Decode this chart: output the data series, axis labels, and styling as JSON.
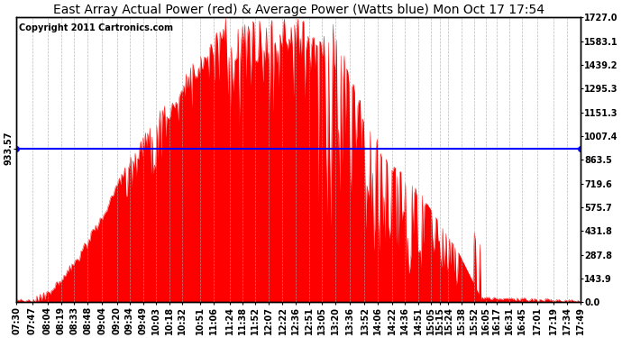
{
  "title": "East Array Actual Power (red) & Average Power (Watts blue) Mon Oct 17 17:54",
  "copyright": "Copyright 2011 Cartronics.com",
  "avg_power": 933.57,
  "y_max": 1727.0,
  "y_min": 0.0,
  "right_ytick_labels": [
    "0.0",
    "143.9",
    "287.8",
    "431.8",
    "575.7",
    "719.6",
    "863.5",
    "1007.4",
    "1151.3",
    "1295.3",
    "1439.2",
    "1583.1",
    "1727.0"
  ],
  "right_ytick_values": [
    0.0,
    143.9,
    287.8,
    431.8,
    575.7,
    719.6,
    863.5,
    1007.4,
    1151.3,
    1295.3,
    1439.2,
    1583.1,
    1727.0
  ],
  "left_ytick_labels": [
    "933.57"
  ],
  "left_ytick_values": [
    933.57
  ],
  "background_color": "#ffffff",
  "fill_color": "#ff0000",
  "line_color": "#ff0000",
  "avg_line_color": "#0000ff",
  "title_fontsize": 10,
  "copyright_fontsize": 7,
  "tick_fontsize": 7,
  "x_tick_labels": [
    "07:30",
    "07:47",
    "08:04",
    "08:19",
    "08:33",
    "08:48",
    "09:04",
    "09:20",
    "09:34",
    "09:49",
    "10:03",
    "10:18",
    "10:32",
    "10:51",
    "11:06",
    "11:24",
    "11:38",
    "11:52",
    "12:07",
    "12:22",
    "12:36",
    "12:51",
    "13:05",
    "13:20",
    "13:36",
    "13:52",
    "14:06",
    "14:22",
    "14:36",
    "14:51",
    "15:05",
    "15:15",
    "15:24",
    "15:38",
    "15:52",
    "16:05",
    "16:17",
    "16:31",
    "16:45",
    "17:01",
    "17:19",
    "17:34",
    "17:49"
  ]
}
